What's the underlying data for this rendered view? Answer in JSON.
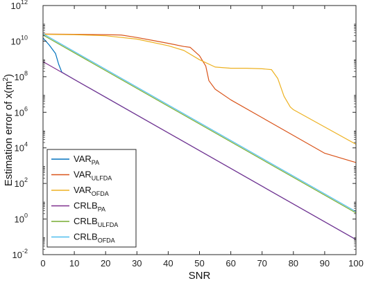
{
  "chart_data": {
    "type": "line",
    "xlabel": "SNR",
    "ylabel_base": "Estimation error of x(m",
    "ylabel_sup": "2",
    "ylabel_end": ")",
    "xlim": [
      0,
      100
    ],
    "ylim_exponent": [
      -2,
      12
    ],
    "y_scale": "log",
    "x_ticks": [
      "0",
      "10",
      "20",
      "30",
      "40",
      "50",
      "60",
      "70",
      "80",
      "90",
      "100"
    ],
    "y_ticks": [
      {
        "base": "10",
        "exp": "-2"
      },
      {
        "base": "10",
        "exp": "0"
      },
      {
        "base": "10",
        "exp": "2"
      },
      {
        "base": "10",
        "exp": "4"
      },
      {
        "base": "10",
        "exp": "6"
      },
      {
        "base": "10",
        "exp": "8"
      },
      {
        "base": "10",
        "exp": "10"
      },
      {
        "base": "10",
        "exp": "12"
      }
    ],
    "legend_position": "bottom-left",
    "series": [
      {
        "name": "VAR",
        "sub": "PA",
        "color": "#0072BD",
        "x": [
          0,
          2,
          4,
          5,
          6,
          10,
          20,
          40,
          60,
          80,
          100
        ],
        "y": [
          15000000000.0,
          6000000000.0,
          2000000000.0,
          500000000.0,
          180000000.0,
          70000000.0,
          7000000.0,
          70000.0,
          700,
          7,
          0.07
        ]
      },
      {
        "name": "VAR",
        "sub": "ULFDA",
        "color": "#D95319",
        "x": [
          0,
          10,
          20,
          25,
          30,
          35,
          40,
          45,
          47,
          50,
          52,
          53,
          55,
          60,
          70,
          80,
          90,
          100
        ],
        "y": [
          25000000000.0,
          24000000000.0,
          23000000000.0,
          22000000000.0,
          16000000000.0,
          11000000000.0,
          7500000000.0,
          5000000000.0,
          4500000000.0,
          1500000000.0,
          400000000.0,
          60000000.0,
          20000000.0,
          5000000.0,
          500000.0,
          50000.0,
          5000.0,
          1500.0
        ]
      },
      {
        "name": "VAR",
        "sub": "OFDA",
        "color": "#EDB120",
        "x": [
          0,
          10,
          20,
          30,
          40,
          45,
          50,
          55,
          60,
          65,
          70,
          73,
          75,
          77,
          79,
          80,
          90,
          100
        ],
        "y": [
          24000000000.0,
          23000000000.0,
          20000000000.0,
          13000000000.0,
          5500000000.0,
          3000000000.0,
          900000000.0,
          350000000.0,
          300000000.0,
          300000000.0,
          280000000.0,
          250000000.0,
          80000000.0,
          8000000.0,
          2000000.0,
          1400000.0,
          150000.0,
          16000.0
        ]
      },
      {
        "name": "CRLB",
        "sub": "PA",
        "color": "#7E2F8E",
        "x": [
          0,
          100
        ],
        "y": [
          700000000.0,
          0.07
        ]
      },
      {
        "name": "CRLB",
        "sub": "ULFDA",
        "color": "#77AC30",
        "x": [
          0,
          100
        ],
        "y": [
          22000000000.0,
          2.2
        ]
      },
      {
        "name": "CRLB",
        "sub": "OFDA",
        "color": "#4DBEEE",
        "x": [
          0,
          100
        ],
        "y": [
          26000000000.0,
          2.6
        ]
      }
    ]
  }
}
